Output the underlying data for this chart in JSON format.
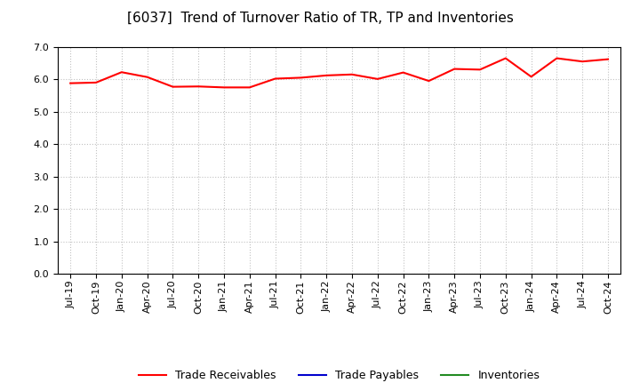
{
  "title": "[6037]  Trend of Turnover Ratio of TR, TP and Inventories",
  "x_labels": [
    "Jul-19",
    "Oct-19",
    "Jan-20",
    "Apr-20",
    "Jul-20",
    "Oct-20",
    "Jan-21",
    "Apr-21",
    "Jul-21",
    "Oct-21",
    "Jan-22",
    "Apr-22",
    "Jul-22",
    "Oct-22",
    "Jan-23",
    "Apr-23",
    "Jul-23",
    "Oct-23",
    "Jan-24",
    "Apr-24",
    "Jul-24",
    "Oct-24"
  ],
  "trade_receivables": [
    5.88,
    5.9,
    6.22,
    6.07,
    5.77,
    5.78,
    5.75,
    5.75,
    6.02,
    6.05,
    6.12,
    6.15,
    6.01,
    6.21,
    5.95,
    6.32,
    6.3,
    6.65,
    6.08,
    6.65,
    6.55,
    6.62
  ],
  "trade_payables": [
    null,
    null,
    null,
    null,
    null,
    null,
    null,
    null,
    null,
    null,
    null,
    null,
    null,
    null,
    null,
    null,
    null,
    null,
    null,
    null,
    null,
    null
  ],
  "inventories": [
    null,
    null,
    null,
    null,
    null,
    null,
    null,
    null,
    null,
    null,
    null,
    null,
    null,
    null,
    null,
    null,
    null,
    null,
    null,
    null,
    null,
    null
  ],
  "tr_color": "#FF0000",
  "tp_color": "#0000CD",
  "inv_color": "#228B22",
  "ylim": [
    0.0,
    7.0
  ],
  "yticks": [
    0.0,
    1.0,
    2.0,
    3.0,
    4.0,
    5.0,
    6.0,
    7.0
  ],
  "background_color": "#FFFFFF",
  "grid_color": "#BBBBBB",
  "title_fontsize": 11,
  "tick_fontsize": 8,
  "legend_labels": [
    "Trade Receivables",
    "Trade Payables",
    "Inventories"
  ]
}
